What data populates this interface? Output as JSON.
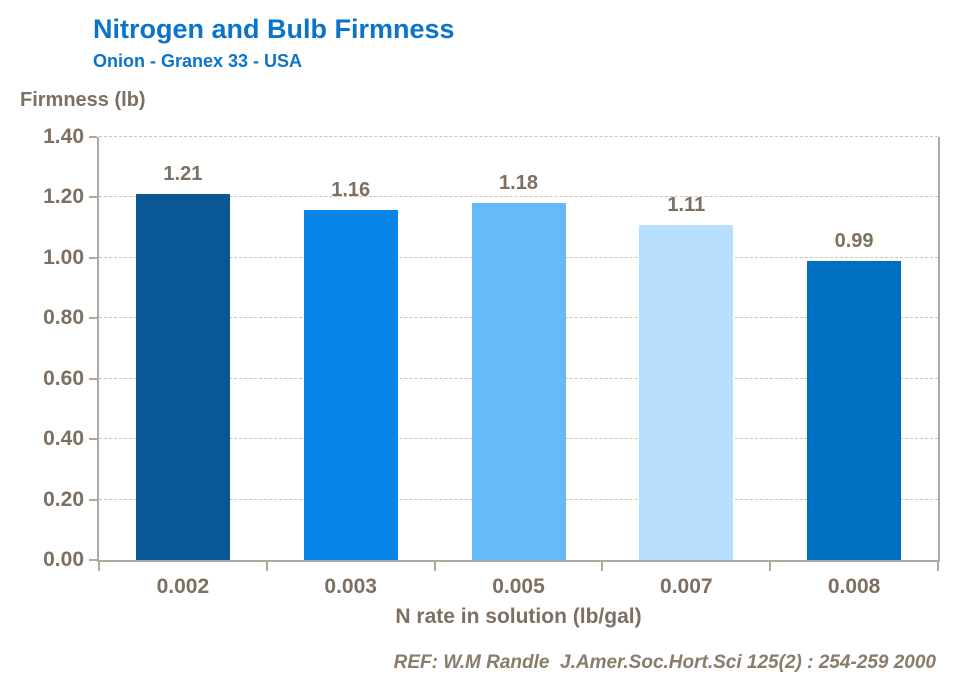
{
  "header": {
    "title": "Nitrogen and Bulb Firmness",
    "subtitle": "Onion - Granex 33 - USA"
  },
  "chart_data": {
    "type": "bar",
    "title": "Nitrogen and Bulb Firmness",
    "subtitle": "Onion - Granex 33 - USA",
    "categories": [
      "0.002",
      "0.003",
      "0.005",
      "0.007",
      "0.008"
    ],
    "values": [
      1.21,
      1.16,
      1.18,
      1.11,
      0.99
    ],
    "data_labels": [
      "1.21",
      "1.16",
      "1.18",
      "1.11",
      "0.99"
    ],
    "bar_colors": [
      "#0a5795",
      "#0884e8",
      "#66bafa",
      "#b7defc",
      "#0071c2"
    ],
    "xlabel": "N rate in solution (lb/gal)",
    "ylabel": "Firmness (lb)",
    "ylim": [
      0,
      1.4
    ],
    "ytick_step": 0.2,
    "ytick_labels": [
      "0.00",
      "0.20",
      "0.40",
      "0.60",
      "0.80",
      "1.00",
      "1.20",
      "1.40"
    ],
    "grid": "horizontal-dashed",
    "legend": "none"
  },
  "footer": {
    "reference": "REF: W.M Randle  J.Amer.Soc.Hort.Sci 125(2) : 254-259 2000"
  },
  "colors": {
    "title_blue": "#0c74c8",
    "text_brown": "#7d7062",
    "axis_line": "#b2a89e",
    "gridline": "#ccc4ba",
    "background": "#ffffff"
  }
}
